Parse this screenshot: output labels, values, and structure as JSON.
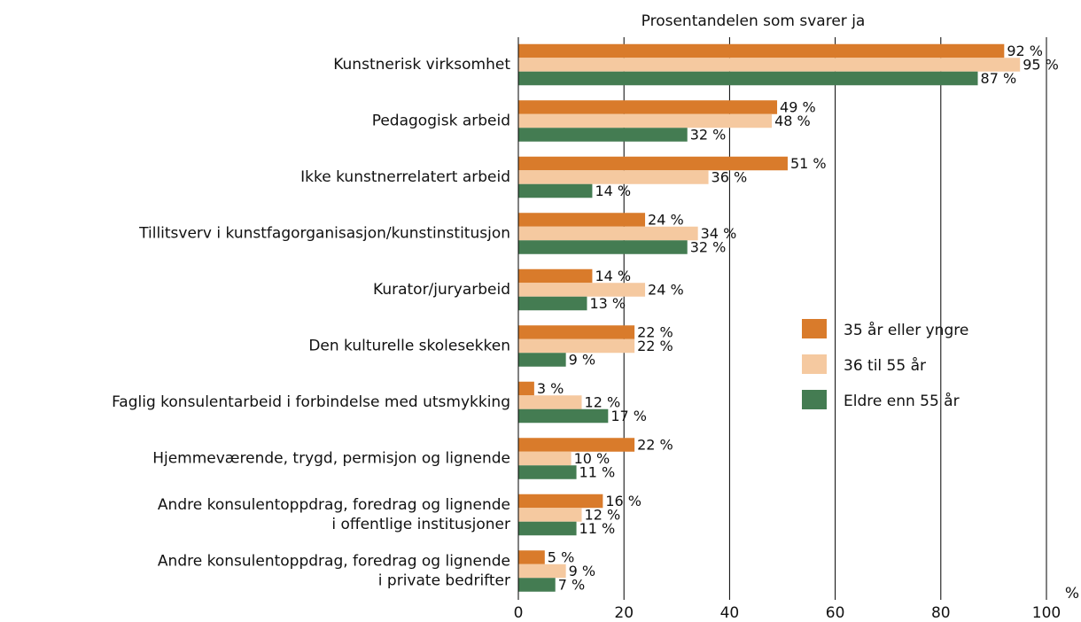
{
  "chart_data": {
    "type": "bar",
    "orientation": "horizontal",
    "title": "Prosentandelen som svarer ja",
    "x_unit": "%",
    "categories": [
      [
        "Kunstnerisk virksomhet"
      ],
      [
        "Pedagogisk arbeid"
      ],
      [
        "Ikke kunstnerrelatert arbeid"
      ],
      [
        "Tillitsverv i kunstfagorganisasjon/kunstinstitusjon"
      ],
      [
        "Kurator/juryarbeid"
      ],
      [
        "Den kulturelle skolesekken"
      ],
      [
        "Faglig konsulentarbeid i forbindelse med utsmykking"
      ],
      [
        "Hjemmeværende, trygd, permisjon og lignende"
      ],
      [
        "Andre konsulentoppdrag, foredrag og lignende",
        "i offentlige institusjoner"
      ],
      [
        "Andre konsulentoppdrag, foredrag og lignende",
        "i private bedrifter"
      ]
    ],
    "series": [
      {
        "name": "35 år eller yngre",
        "color": "#d97b2b",
        "values": [
          92,
          49,
          51,
          24,
          14,
          22,
          3,
          22,
          16,
          5
        ],
        "value_labels": [
          "92 %",
          "49 %",
          "51 %",
          "24 %",
          "14 %",
          "22 %",
          "3 %",
          "22 %",
          "16 %",
          "5 %"
        ]
      },
      {
        "name": "36 til 55 år",
        "color": "#f5c9a0",
        "values": [
          95,
          48,
          36,
          34,
          24,
          22,
          12,
          10,
          12,
          9
        ],
        "value_labels": [
          "95 %",
          "48 %",
          "36 %",
          "34 %",
          "24 %",
          "22 %",
          "12 %",
          "10 %",
          "12 %",
          "9 %"
        ]
      },
      {
        "name": "Eldre enn 55 år",
        "color": "#447c52",
        "values": [
          87,
          32,
          14,
          32,
          13,
          9,
          17,
          11,
          11,
          7
        ],
        "value_labels": [
          "87 %",
          "32 %",
          "14 %",
          "32 %",
          "13 %",
          "9 %",
          "17 %",
          "11 %",
          "11 %",
          "7 %"
        ]
      }
    ],
    "xlim": [
      0,
      100
    ],
    "xticks": [
      0,
      20,
      40,
      60,
      80,
      100
    ],
    "grid": true,
    "legend": "right"
  }
}
